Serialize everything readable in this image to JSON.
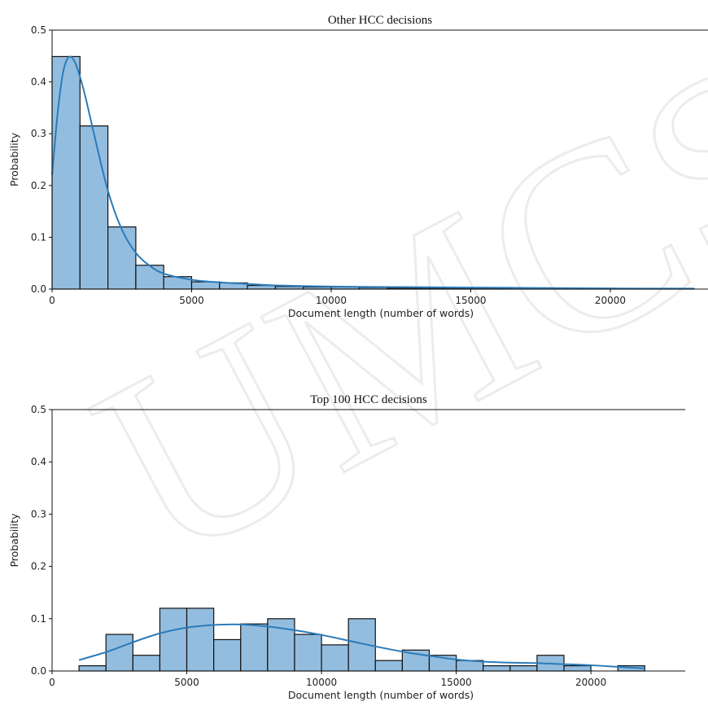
{
  "watermark": "UMCS",
  "chart_data": [
    {
      "type": "histogram",
      "title": "Other HCC decisions",
      "xlabel": "Document length (number of words)",
      "ylabel": "Probability",
      "xlim": [
        0,
        23500
      ],
      "ylim": [
        0,
        0.5
      ],
      "xticks": [
        0,
        5000,
        10000,
        15000,
        20000
      ],
      "yticks": [
        0.0,
        0.1,
        0.2,
        0.3,
        0.4,
        0.5
      ],
      "bin_edges": [
        0,
        1000,
        2000,
        3000,
        4000,
        5000,
        6000,
        7000,
        8000,
        9000,
        10000,
        11000,
        12000,
        13000,
        14000,
        15000,
        16000,
        17000,
        18000,
        19000,
        20000,
        21000,
        22000,
        23000
      ],
      "values": [
        0.449,
        0.315,
        0.12,
        0.046,
        0.024,
        0.014,
        0.012,
        0.007,
        0.005,
        0.004,
        0.004,
        0.003,
        0.002,
        0.002,
        0.002,
        0.002,
        0.001,
        0.001,
        0.001,
        0.001,
        0.001,
        0.001,
        0.001
      ],
      "kde": {
        "x": [
          0,
          200,
          400,
          600,
          800,
          1000,
          1200,
          1500,
          2000,
          2500,
          3000,
          3500,
          4000,
          5000,
          6000,
          7000,
          8000,
          10000,
          12000,
          15000,
          18000,
          21000,
          23000
        ],
        "y": [
          0.22,
          0.34,
          0.42,
          0.448,
          0.44,
          0.41,
          0.37,
          0.3,
          0.19,
          0.115,
          0.07,
          0.045,
          0.03,
          0.018,
          0.013,
          0.01,
          0.007,
          0.005,
          0.004,
          0.003,
          0.002,
          0.001,
          0.001
        ]
      }
    },
    {
      "type": "histogram",
      "title": "Top 100 HCC decisions",
      "xlabel": "Document length (number of words)",
      "ylabel": "Probability",
      "xlim": [
        0,
        23500
      ],
      "ylim": [
        0,
        0.5
      ],
      "xticks": [
        0,
        5000,
        10000,
        15000,
        20000
      ],
      "yticks": [
        0.0,
        0.1,
        0.2,
        0.3,
        0.4,
        0.5
      ],
      "bin_edges": [
        1000,
        2000,
        3000,
        4000,
        5000,
        6000,
        7000,
        8000,
        9000,
        10000,
        11000,
        12000,
        13000,
        14000,
        15000,
        16000,
        17000,
        18000,
        19000,
        20000,
        21000,
        22000
      ],
      "values": [
        0.01,
        0.07,
        0.03,
        0.12,
        0.12,
        0.06,
        0.09,
        0.1,
        0.07,
        0.05,
        0.1,
        0.02,
        0.04,
        0.03,
        0.02,
        0.01,
        0.01,
        0.03,
        0.01,
        0.0,
        0.01
      ],
      "kde": {
        "x": [
          1000,
          2000,
          3000,
          4000,
          5000,
          6000,
          7000,
          8000,
          9000,
          10000,
          11000,
          12000,
          13000,
          14000,
          15000,
          16000,
          17000,
          18000,
          19000,
          20000,
          21000,
          22000
        ],
        "y": [
          0.021,
          0.036,
          0.055,
          0.072,
          0.083,
          0.088,
          0.089,
          0.085,
          0.078,
          0.069,
          0.058,
          0.047,
          0.037,
          0.029,
          0.022,
          0.018,
          0.016,
          0.015,
          0.013,
          0.011,
          0.008,
          0.005
        ]
      }
    }
  ]
}
